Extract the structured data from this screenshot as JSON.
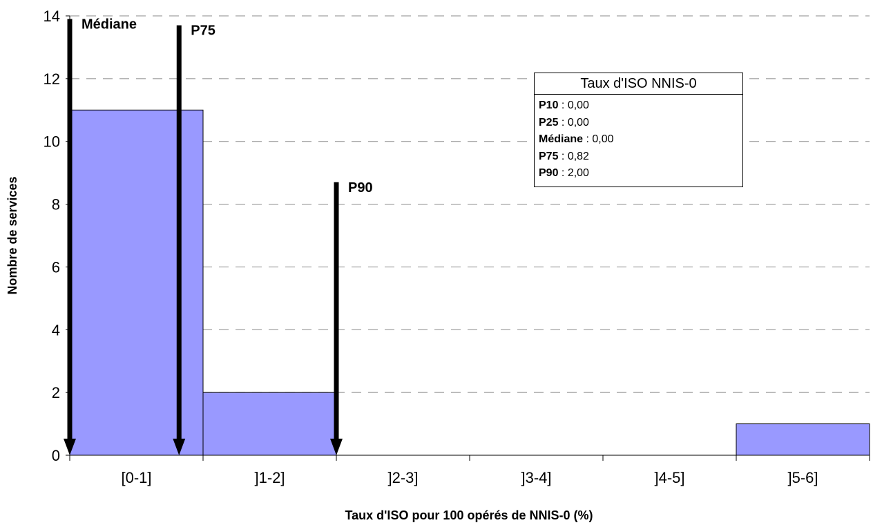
{
  "chart_data": {
    "type": "bar",
    "categories": [
      "[0-1]",
      "]1-2]",
      "]2-3]",
      "]3-4]",
      "]4-5]",
      "]5-6]"
    ],
    "values": [
      11,
      2,
      0,
      0,
      0,
      1
    ],
    "xlabel": "Taux d'ISO pour 100 opérés de NNIS-0 (%)",
    "ylabel": "Nombre de services",
    "ylim": [
      0,
      14
    ],
    "yticks": [
      0,
      2,
      4,
      6,
      8,
      10,
      12,
      14
    ],
    "grid": true,
    "bar_color": "#9999ff",
    "markers": [
      {
        "label": "Médiane",
        "x": 0.0,
        "top": 13.9
      },
      {
        "label": "P75",
        "x": 0.82,
        "top": 13.7
      },
      {
        "label": "P90",
        "x": 2.0,
        "top": 8.7
      }
    ],
    "stats_box": {
      "title": "Taux d'ISO NNIS-0",
      "rows": [
        {
          "name": "P10",
          "value": "0,00"
        },
        {
          "name": "P25",
          "value": "0,00"
        },
        {
          "name": "Médiane",
          "value": "0,00"
        },
        {
          "name": "P75",
          "value": "0,82"
        },
        {
          "name": "P90",
          "value": "2,00"
        }
      ]
    }
  }
}
